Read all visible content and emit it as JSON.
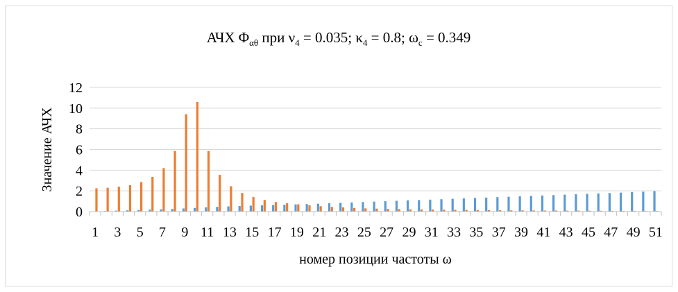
{
  "chart_data": {
    "type": "bar",
    "title": {
      "prefix": "АЧХ Φ",
      "prefix_sub": "αθ",
      "mid1": " при ν",
      "mid1_sub": "4",
      "mid2": " = 0.035; κ",
      "mid2_sub": "4",
      "mid3": " = 0.8; ω",
      "mid3_sub": "c",
      "suffix": " = 0.349"
    },
    "xlabel": "номер позиции частоты ω",
    "ylabel": "Значение АЧХ",
    "ylim": [
      0,
      12
    ],
    "yticks": [
      0,
      2,
      4,
      6,
      8,
      10,
      12
    ],
    "grid": true,
    "legend": "none",
    "categories": [
      1,
      2,
      3,
      4,
      5,
      6,
      7,
      8,
      9,
      10,
      11,
      12,
      13,
      14,
      15,
      16,
      17,
      18,
      19,
      20,
      21,
      22,
      23,
      24,
      25,
      26,
      27,
      28,
      29,
      30,
      31,
      32,
      33,
      34,
      35,
      36,
      37,
      38,
      39,
      40,
      41,
      42,
      43,
      44,
      45,
      46,
      47,
      48,
      49,
      50,
      51
    ],
    "tick_labels": [
      "1",
      "3",
      "5",
      "7",
      "9",
      "11",
      "13",
      "15",
      "17",
      "19",
      "21",
      "23",
      "25",
      "27",
      "29",
      "31",
      "33",
      "35",
      "37",
      "39",
      "41",
      "43",
      "45",
      "47",
      "49",
      "51"
    ],
    "series": [
      {
        "color": "#5b9bd5",
        "values": [
          0.03,
          0.06,
          0.09,
          0.12,
          0.15,
          0.18,
          0.21,
          0.25,
          0.3,
          0.35,
          0.4,
          0.45,
          0.5,
          0.54,
          0.57,
          0.6,
          0.63,
          0.66,
          0.69,
          0.72,
          0.76,
          0.8,
          0.84,
          0.88,
          0.92,
          0.96,
          1.0,
          1.04,
          1.08,
          1.11,
          1.15,
          1.19,
          1.23,
          1.27,
          1.31,
          1.35,
          1.39,
          1.43,
          1.47,
          1.51,
          1.55,
          1.59,
          1.63,
          1.67,
          1.71,
          1.75,
          1.79,
          1.83,
          1.87,
          1.92,
          1.97
        ]
      },
      {
        "color": "#ed7d31",
        "values": [
          2.25,
          2.3,
          2.4,
          2.55,
          2.85,
          3.35,
          4.2,
          5.85,
          9.4,
          10.6,
          5.85,
          3.55,
          2.45,
          1.8,
          1.4,
          1.12,
          0.92,
          0.8,
          0.7,
          0.6,
          0.52,
          0.45,
          0.4,
          0.35,
          0.31,
          0.28,
          0.26,
          0.24,
          0.22,
          0.2,
          0.19,
          0.18,
          0.17,
          0.16,
          0.15,
          0.14,
          0.13,
          0.12,
          0.12,
          0.11,
          0.1,
          0.1,
          0.09,
          0.09,
          0.08,
          0.08,
          0.07,
          0.07,
          0.07,
          0.06,
          0.06
        ]
      }
    ]
  }
}
